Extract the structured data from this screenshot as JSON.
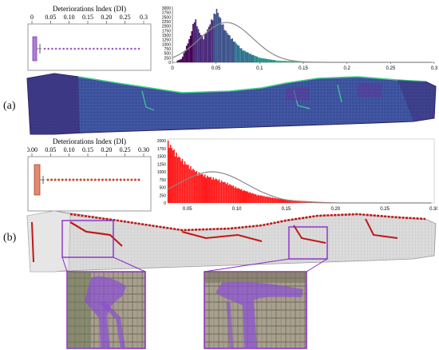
{
  "panel_a": {
    "label": "(a)",
    "boxplot": {
      "title": "Deteriorations Index (DI)",
      "ticks": [
        "0",
        "0.05",
        "0.10",
        "0.15",
        "0.20",
        "0.25",
        "0.3"
      ],
      "box_color": "#b07ad8",
      "outlier_color": "#9a5cc6"
    },
    "histogram": {
      "y_ticks": [
        "0",
        "250",
        "500",
        "750",
        "1000",
        "1250",
        "1500",
        "1750",
        "2000",
        "2250",
        "2500",
        "2750",
        "3000"
      ],
      "x_ticks": [
        "0",
        "0.05",
        "0.1",
        "0.15",
        "0.2",
        "0.25",
        "0.3"
      ],
      "colormap": [
        "#440154",
        "#3b528b",
        "#21918c",
        "#5ec962"
      ]
    }
  },
  "panel_b": {
    "label": "(b)",
    "boxplot": {
      "title": "Deteriorations Index (DI)",
      "ticks": [
        "0.00",
        "0.05",
        "0.10",
        "0.15",
        "0.20",
        "0.25",
        "0.30"
      ],
      "box_color": "#e08a6e",
      "outlier_color": "#c04a2a"
    },
    "histogram": {
      "y_ticks": [
        "0",
        "250",
        "500",
        "750",
        "1000",
        "1250",
        "1500",
        "1750",
        "2000"
      ],
      "x_ticks": [
        "0.05",
        "0.10",
        "0.15",
        "0.20",
        "0.25",
        "0.30"
      ],
      "bar_color": "#ff1a1a"
    },
    "highlight_color": "#8a2bc9"
  },
  "chart_data": [
    {
      "type": "bar",
      "x": [
        0.01,
        0.02,
        0.025,
        0.03,
        0.035,
        0.04,
        0.045,
        0.05,
        0.055,
        0.06,
        0.07,
        0.08,
        0.09,
        0.1,
        0.12,
        0.15,
        0.2,
        0.25,
        0.3
      ],
      "values": [
        200,
        1500,
        2550,
        1700,
        1400,
        1900,
        2500,
        3000,
        2400,
        1800,
        1200,
        700,
        450,
        250,
        100,
        40,
        10,
        5,
        0
      ],
      "ylim": [
        0,
        3000
      ],
      "xlim": [
        0,
        0.3
      ]
    },
    {
      "type": "bar",
      "x": [
        0.03,
        0.04,
        0.05,
        0.06,
        0.07,
        0.08,
        0.09,
        0.1,
        0.11,
        0.12,
        0.14,
        0.16,
        0.18,
        0.2,
        0.25,
        0.3
      ],
      "values": [
        2000,
        1550,
        1250,
        1000,
        880,
        780,
        650,
        500,
        380,
        270,
        150,
        80,
        40,
        15,
        5,
        0
      ],
      "ylim": [
        0,
        2000
      ],
      "xlim": [
        0.03,
        0.3
      ]
    }
  ]
}
